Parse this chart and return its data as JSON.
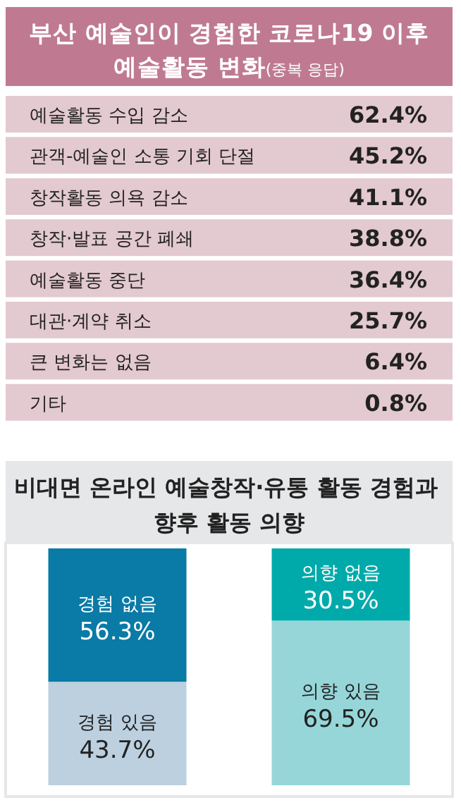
{
  "chart_data": [
    {
      "type": "other",
      "title": "부산 예술인이 경험한 코로나19 이후 예술활동 변화",
      "subtitle": "(중복 응답)",
      "color": "#e3c9d0",
      "categories": [
        "예술활동 수입 감소",
        "관객-예술인 소통 기회 단절",
        "창작활동 의욕 감소",
        "창작·발표 공간 폐쇄",
        "예술활동 중단",
        "대관·계약 취소",
        "큰 변화는 없음",
        "기타"
      ],
      "values": [
        62.4,
        45.2,
        41.1,
        38.8,
        36.4,
        25.7,
        6.4,
        0.8
      ],
      "value_labels": [
        "62.4%",
        "45.2%",
        "41.1%",
        "38.8%",
        "36.4%",
        "25.7%",
        "6.4%",
        "0.8%"
      ]
    },
    {
      "type": "bar",
      "stacked": true,
      "title": "비대면 온라인 예술창작·유통 활동 경험과 향후 활동 의향",
      "categories": [
        null,
        null
      ],
      "series": [
        {
          "name": "경험 있음",
          "color": "#bcd0e0",
          "values": [
            43.7,
            null
          ],
          "value_labels": [
            "43.7%",
            null
          ]
        },
        {
          "name": "경험 없음",
          "color": "#0a7aa6",
          "values": [
            56.3,
            null
          ],
          "value_labels": [
            "56.3%",
            null
          ]
        },
        {
          "name": "의향 있음",
          "color": "#96d6d9",
          "values": [
            null,
            69.5
          ],
          "value_labels": [
            null,
            "69.5%"
          ]
        },
        {
          "name": "의향 없음",
          "color": "#00aaaa",
          "values": [
            null,
            30.5
          ],
          "value_labels": [
            null,
            "30.5%"
          ]
        }
      ]
    }
  ]
}
